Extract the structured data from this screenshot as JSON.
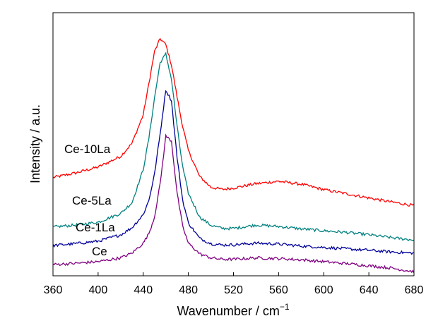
{
  "chart_data": {
    "type": "line",
    "xlabel": "Wavenumber / cm",
    "xlabel_sup": "−1",
    "ylabel": "Intensity / a.u.",
    "xlim": [
      360,
      680
    ],
    "ylim": [
      0,
      1
    ],
    "x_ticks": [
      "360",
      "400",
      "440",
      "480",
      "520",
      "560",
      "600",
      "640",
      "680"
    ],
    "y_ticks_shown": false,
    "grid": false,
    "legend": "inline labels next to curves",
    "series": [
      {
        "name": "Ce-10La",
        "color": "#ff0000",
        "x": [
          360,
          380,
          400,
          420,
          430,
          440,
          445,
          450,
          455,
          460,
          465,
          470,
          475,
          480,
          490,
          500,
          510,
          520,
          540,
          560,
          580,
          600,
          620,
          640,
          660,
          680
        ],
        "y": [
          0.366,
          0.385,
          0.41,
          0.455,
          0.51,
          0.63,
          0.76,
          0.895,
          0.95,
          0.925,
          0.84,
          0.705,
          0.58,
          0.48,
          0.37,
          0.325,
          0.316,
          0.322,
          0.34,
          0.35,
          0.338,
          0.315,
          0.298,
          0.28,
          0.263,
          0.248
        ]
      },
      {
        "name": "Ce-5La",
        "color": "#008080",
        "x": [
          360,
          380,
          400,
          420,
          430,
          440,
          445,
          450,
          455,
          460,
          465,
          470,
          475,
          480,
          490,
          500,
          510,
          520,
          540,
          560,
          580,
          600,
          620,
          640,
          660,
          680
        ],
        "y": [
          0.158,
          0.166,
          0.178,
          0.215,
          0.26,
          0.4,
          0.53,
          0.7,
          0.85,
          0.885,
          0.78,
          0.58,
          0.41,
          0.3,
          0.2,
          0.165,
          0.152,
          0.152,
          0.166,
          0.16,
          0.15,
          0.142,
          0.135,
          0.125,
          0.113,
          0.103
        ]
      },
      {
        "name": "Ce-1La",
        "color": "#000099",
        "x": [
          360,
          380,
          400,
          420,
          430,
          440,
          445,
          450,
          455,
          460,
          465,
          470,
          475,
          480,
          490,
          500,
          510,
          520,
          540,
          560,
          580,
          600,
          620,
          640,
          660,
          680
        ],
        "y": [
          0.08,
          0.088,
          0.098,
          0.125,
          0.155,
          0.21,
          0.27,
          0.38,
          0.55,
          0.735,
          0.69,
          0.45,
          0.27,
          0.175,
          0.11,
          0.088,
          0.082,
          0.083,
          0.09,
          0.086,
          0.078,
          0.072,
          0.066,
          0.06,
          0.053,
          0.048
        ]
      },
      {
        "name": "Ce",
        "color": "#800080",
        "x": [
          360,
          380,
          400,
          420,
          430,
          440,
          445,
          450,
          455,
          460,
          465,
          470,
          475,
          480,
          490,
          500,
          510,
          520,
          540,
          560,
          580,
          600,
          620,
          640,
          660,
          680
        ],
        "y": [
          0.0,
          0.005,
          0.012,
          0.028,
          0.048,
          0.09,
          0.13,
          0.2,
          0.34,
          0.54,
          0.52,
          0.3,
          0.16,
          0.09,
          0.045,
          0.028,
          0.022,
          0.022,
          0.028,
          0.025,
          0.02,
          0.012,
          0.004,
          -0.005,
          -0.015,
          -0.03
        ]
      }
    ]
  }
}
